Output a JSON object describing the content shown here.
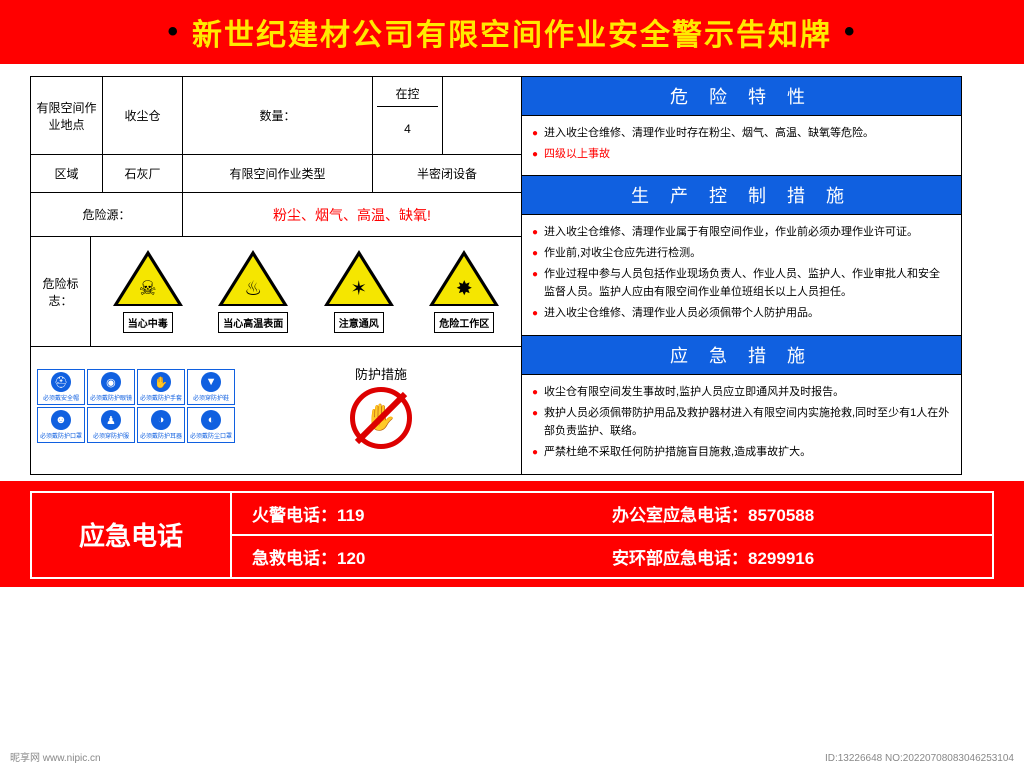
{
  "header": {
    "title": "新世纪建材公司有限空间作业安全警示告知牌"
  },
  "info": {
    "loc_label": "有限空间作业地点",
    "loc_value": "收尘仓",
    "qty_label": "数量：",
    "ctrl_label": "在控",
    "ctrl_value": "4",
    "area_label": "区域",
    "area_value": "石灰厂",
    "type_label": "有限空间作业类型",
    "type_value": "半密闭设备",
    "hazsrc_label": "危险源：",
    "hazsrc_value": "粉尘、烟气、高温、缺氧!",
    "hazsign_label": "危险标志：",
    "protect_label": "防护措施"
  },
  "hazards": [
    {
      "label": "当心中毒",
      "glyph": "☠"
    },
    {
      "label": "当心高温表面",
      "glyph": "♨"
    },
    {
      "label": "注意通风",
      "glyph": "✶"
    },
    {
      "label": "危险工作区",
      "glyph": "✸"
    }
  ],
  "ppe": [
    {
      "label": "必须戴安全帽",
      "glyph": "⛑"
    },
    {
      "label": "必须戴防护眼镜",
      "glyph": "◉"
    },
    {
      "label": "必须戴防护手套",
      "glyph": "✋"
    },
    {
      "label": "必须穿防护鞋",
      "glyph": "▼"
    },
    {
      "label": "必须戴防护口罩",
      "glyph": "☻"
    },
    {
      "label": "必须穿防护服",
      "glyph": "♟"
    },
    {
      "label": "必须戴防护耳器",
      "glyph": "◑"
    },
    {
      "label": "必须戴防尘口罩",
      "glyph": "◐"
    }
  ],
  "sections": {
    "s1": {
      "title": "危 险 特 性",
      "items": [
        {
          "text": "进入收尘仓维修、清理作业时存在粉尘、烟气、高温、缺氧等危险。",
          "red": false
        },
        {
          "text": "四级以上事故",
          "red": true
        }
      ]
    },
    "s2": {
      "title": "生 产 控 制 措 施",
      "items": [
        {
          "text": "进入收尘仓维修、清理作业属于有限空间作业，作业前必须办理作业许可证。"
        },
        {
          "text": "作业前,对收尘仓应先进行检测。"
        },
        {
          "text": "作业过程中参与人员包括作业现场负责人、作业人员、监护人、作业审批人和安全监督人员。监护人应由有限空间作业单位班组长以上人员担任。"
        },
        {
          "text": "进入收尘仓维修、清理作业人员必须佩带个人防护用品。"
        }
      ]
    },
    "s3": {
      "title": "应 急 措 施",
      "items": [
        {
          "text": "收尘仓有限空间发生事故时,监护人员应立即通风并及时报告。"
        },
        {
          "text": "救护人员必须佩带防护用品及救护器材进入有限空间内实施抢救,同时至少有1人在外部负责监护、联络。"
        },
        {
          "text": "严禁杜绝不采取任何防护措施盲目施救,造成事故扩大。"
        }
      ]
    }
  },
  "footer": {
    "label": "应急电话",
    "rows": [
      [
        {
          "k": "火警电话：",
          "v": "119"
        },
        {
          "k": "办公室应急电话：",
          "v": "8570588"
        }
      ],
      [
        {
          "k": "急救电话：",
          "v": "120"
        },
        {
          "k": "安环部应急电话：",
          "v": "8299916"
        }
      ]
    ]
  },
  "watermark": {
    "left": "昵享网  www.nipic.cn",
    "right": "ID:13226648 NO:20220708083046253104"
  },
  "colors": {
    "red": "#ff0000",
    "blue": "#1060e0",
    "yellow": "#ffea00",
    "tri": "#f5e600"
  }
}
